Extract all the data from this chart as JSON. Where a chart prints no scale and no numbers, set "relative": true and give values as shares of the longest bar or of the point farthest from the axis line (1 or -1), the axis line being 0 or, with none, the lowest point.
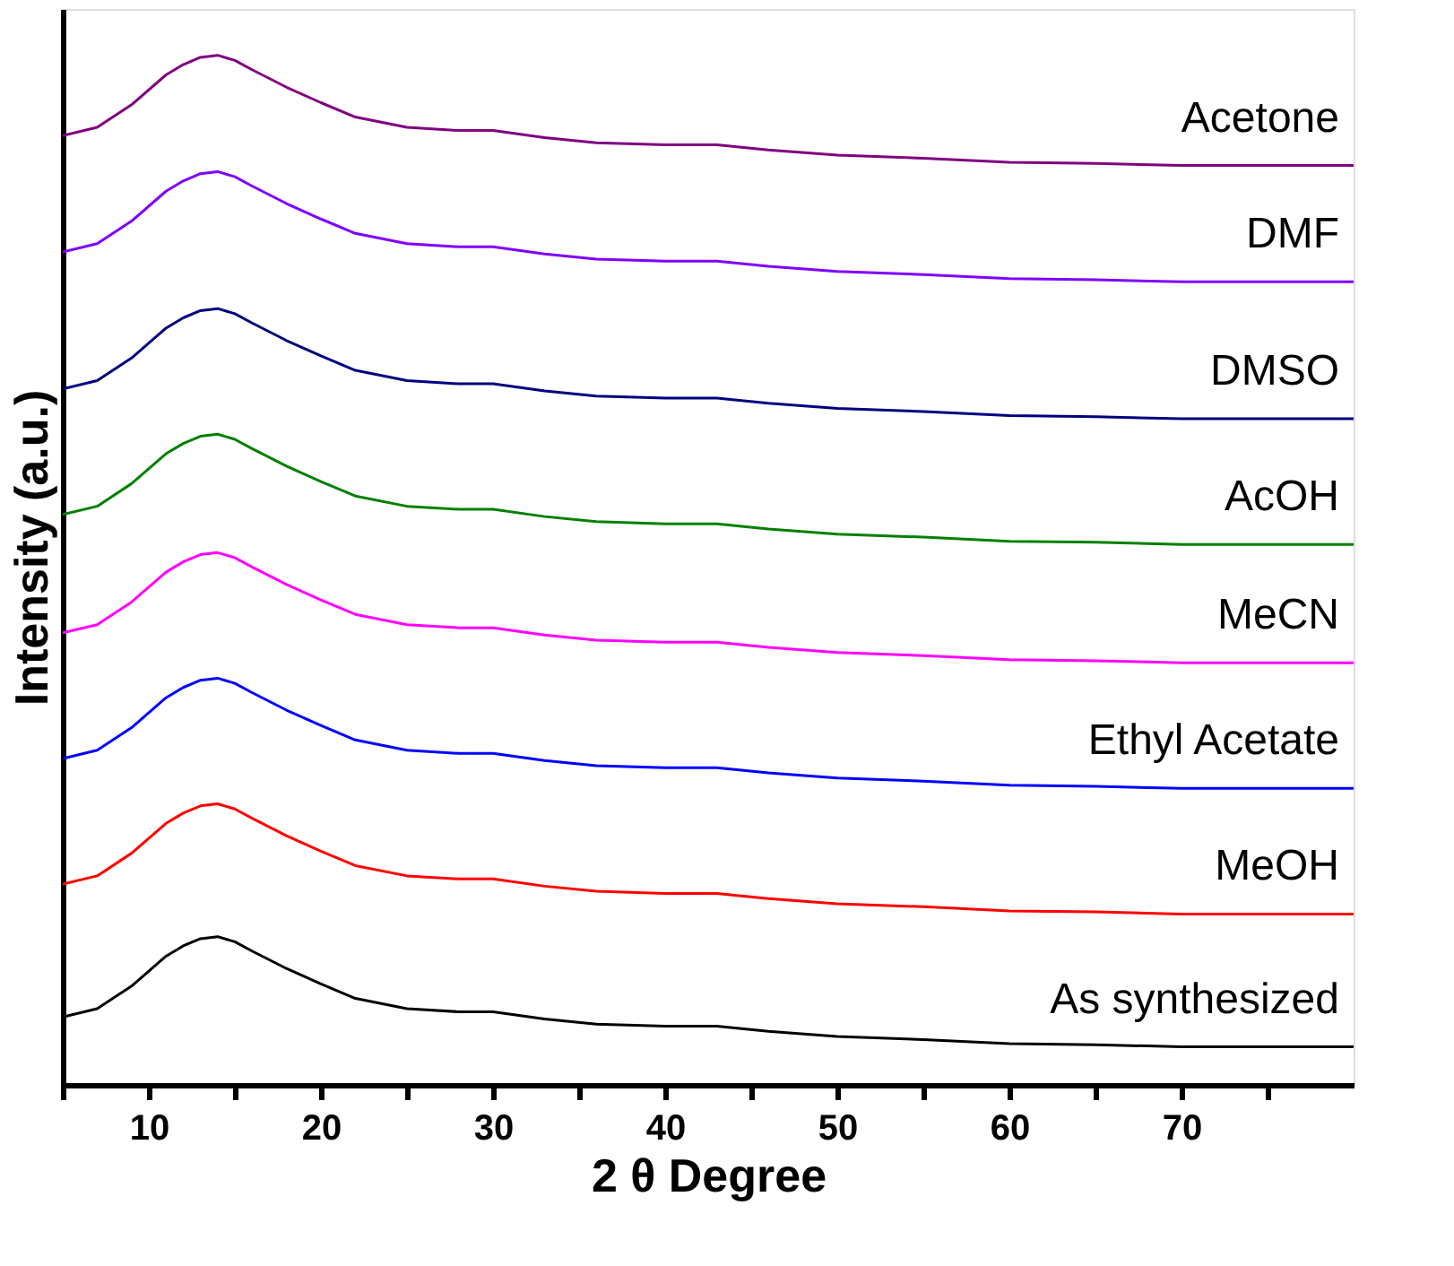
{
  "chart_data": {
    "type": "line",
    "relative": true,
    "xlabel": "2 θ Degree",
    "ylabel": "Intensity (a.u.)",
    "xlim": [
      5,
      80
    ],
    "xticks": [
      {
        "value": 5,
        "label": null
      },
      10,
      {
        "value": 15,
        "label": null
      },
      20,
      {
        "value": 25,
        "label": null
      },
      30,
      {
        "value": 35,
        "label": null
      },
      40,
      {
        "value": 45,
        "label": null
      },
      50,
      {
        "value": 55,
        "label": null
      },
      60,
      {
        "value": 65,
        "label": null
      },
      70,
      {
        "value": 75,
        "label": null
      }
    ],
    "x": [
      5,
      7,
      9,
      11,
      12,
      13,
      14,
      15,
      16,
      18,
      20,
      22,
      25,
      28,
      30,
      33,
      36,
      40,
      43,
      46,
      50,
      55,
      60,
      65,
      70,
      75,
      80
    ],
    "grid": false,
    "marker": "none",
    "line_style": "solid",
    "series": [
      {
        "name": "Acetone",
        "color": "#800080",
        "values": [
          0.922,
          0.93,
          0.952,
          0.981,
          0.991,
          0.998,
          1.0,
          0.995,
          0.986,
          0.969,
          0.954,
          0.94,
          0.93,
          0.927,
          0.927,
          0.92,
          0.915,
          0.913,
          0.913,
          0.908,
          0.903,
          0.9,
          0.896,
          0.895,
          0.893,
          0.893,
          0.893
        ]
      },
      {
        "name": "DMF",
        "color": "#8000ff",
        "values": [
          0.809,
          0.817,
          0.839,
          0.868,
          0.878,
          0.885,
          0.887,
          0.882,
          0.873,
          0.856,
          0.841,
          0.827,
          0.817,
          0.814,
          0.814,
          0.807,
          0.802,
          0.8,
          0.8,
          0.795,
          0.79,
          0.787,
          0.783,
          0.782,
          0.78,
          0.78,
          0.78
        ]
      },
      {
        "name": "DMSO",
        "color": "#000080",
        "values": [
          0.676,
          0.684,
          0.706,
          0.735,
          0.745,
          0.752,
          0.754,
          0.749,
          0.74,
          0.723,
          0.708,
          0.694,
          0.684,
          0.681,
          0.681,
          0.674,
          0.669,
          0.667,
          0.667,
          0.662,
          0.657,
          0.654,
          0.65,
          0.649,
          0.647,
          0.647,
          0.647
        ]
      },
      {
        "name": "AcOH",
        "color": "#008000",
        "values": [
          0.554,
          0.562,
          0.584,
          0.613,
          0.623,
          0.63,
          0.632,
          0.627,
          0.618,
          0.601,
          0.586,
          0.572,
          0.562,
          0.559,
          0.559,
          0.552,
          0.547,
          0.545,
          0.545,
          0.54,
          0.535,
          0.532,
          0.528,
          0.527,
          0.525,
          0.525,
          0.525
        ]
      },
      {
        "name": "MeCN",
        "color": "#ff00ff",
        "values": [
          0.439,
          0.447,
          0.469,
          0.498,
          0.508,
          0.515,
          0.517,
          0.512,
          0.503,
          0.486,
          0.471,
          0.457,
          0.447,
          0.444,
          0.444,
          0.437,
          0.432,
          0.43,
          0.43,
          0.425,
          0.42,
          0.417,
          0.413,
          0.412,
          0.41,
          0.41,
          0.41
        ]
      },
      {
        "name": "Ethyl Acetate",
        "color": "#0000ff",
        "values": [
          0.317,
          0.325,
          0.347,
          0.376,
          0.386,
          0.393,
          0.395,
          0.39,
          0.381,
          0.364,
          0.349,
          0.335,
          0.325,
          0.322,
          0.322,
          0.315,
          0.31,
          0.308,
          0.308,
          0.303,
          0.298,
          0.295,
          0.291,
          0.29,
          0.288,
          0.288,
          0.288
        ]
      },
      {
        "name": "MeOH",
        "color": "#ff0000",
        "values": [
          0.195,
          0.203,
          0.225,
          0.254,
          0.264,
          0.271,
          0.273,
          0.268,
          0.259,
          0.242,
          0.227,
          0.213,
          0.203,
          0.2,
          0.2,
          0.193,
          0.188,
          0.186,
          0.186,
          0.181,
          0.176,
          0.173,
          0.169,
          0.168,
          0.166,
          0.166,
          0.166
        ]
      },
      {
        "name": "As synthesized",
        "color": "#000000",
        "values": [
          0.066,
          0.074,
          0.096,
          0.125,
          0.135,
          0.142,
          0.144,
          0.139,
          0.13,
          0.113,
          0.098,
          0.084,
          0.074,
          0.071,
          0.071,
          0.064,
          0.059,
          0.057,
          0.057,
          0.052,
          0.047,
          0.044,
          0.04,
          0.039,
          0.037,
          0.037,
          0.037
        ]
      }
    ]
  }
}
